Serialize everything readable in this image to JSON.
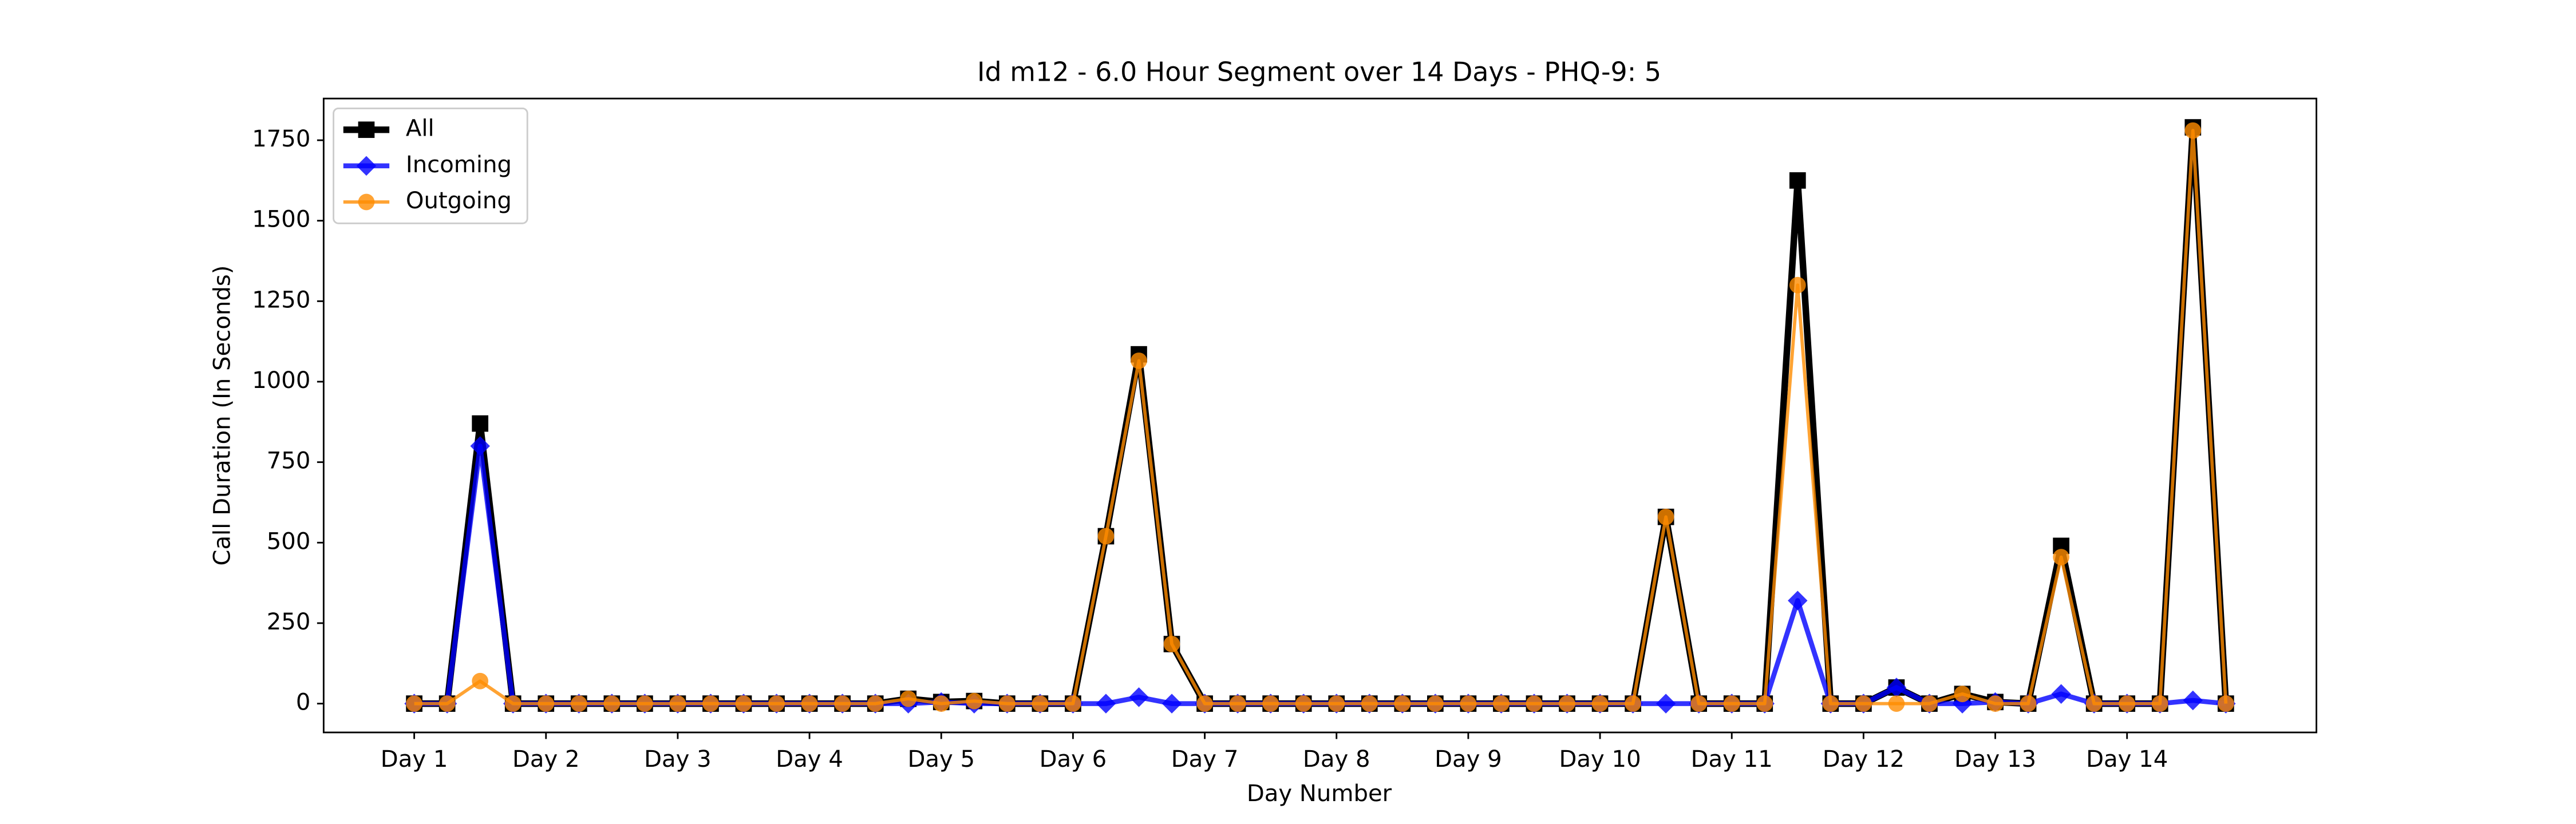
{
  "chart_data": {
    "type": "line",
    "title": "Id m12 - 6.0 Hour Segment over 14 Days - PHQ-9: 5",
    "xlabel": "Day Number",
    "ylabel": "Call Duration (In Seconds)",
    "x": [
      0,
      1,
      2,
      3,
      4,
      5,
      6,
      7,
      8,
      9,
      10,
      11,
      12,
      13,
      14,
      15,
      16,
      17,
      18,
      19,
      20,
      21,
      22,
      23,
      24,
      25,
      26,
      27,
      28,
      29,
      30,
      31,
      32,
      33,
      34,
      35,
      36,
      37,
      38,
      39,
      40,
      41,
      42,
      43,
      44,
      45,
      46,
      47,
      48,
      49,
      50,
      51,
      52,
      53,
      54,
      55
    ],
    "series": [
      {
        "name": "All",
        "color": "#000000",
        "marker": "square",
        "width": 4,
        "values": [
          0,
          0,
          870,
          0,
          0,
          0,
          0,
          0,
          0,
          0,
          0,
          0,
          0,
          0,
          0,
          15,
          5,
          8,
          0,
          0,
          0,
          520,
          1085,
          185,
          0,
          0,
          0,
          0,
          0,
          0,
          0,
          0,
          0,
          0,
          0,
          0,
          0,
          0,
          580,
          0,
          0,
          0,
          1625,
          0,
          0,
          50,
          0,
          30,
          5,
          0,
          490,
          0,
          0,
          0,
          1790,
          0
        ]
      },
      {
        "name": "Incoming",
        "color": "#0000ff",
        "marker": "diamond",
        "width": 3,
        "values": [
          0,
          0,
          800,
          0,
          0,
          0,
          0,
          0,
          0,
          0,
          0,
          0,
          0,
          0,
          0,
          0,
          5,
          0,
          0,
          0,
          0,
          0,
          20,
          0,
          0,
          0,
          0,
          0,
          0,
          0,
          0,
          0,
          0,
          0,
          0,
          0,
          0,
          0,
          0,
          0,
          0,
          0,
          320,
          0,
          0,
          50,
          0,
          0,
          5,
          0,
          30,
          0,
          0,
          0,
          10,
          0
        ]
      },
      {
        "name": "Outgoing",
        "color": "#ff8c00",
        "marker": "circle",
        "width": 2,
        "values": [
          0,
          0,
          70,
          0,
          0,
          0,
          0,
          0,
          0,
          0,
          0,
          0,
          0,
          0,
          0,
          15,
          0,
          8,
          0,
          0,
          0,
          520,
          1065,
          185,
          0,
          0,
          0,
          0,
          0,
          0,
          0,
          0,
          0,
          0,
          0,
          0,
          0,
          0,
          580,
          0,
          0,
          0,
          1300,
          0,
          0,
          0,
          0,
          30,
          0,
          0,
          455,
          0,
          0,
          0,
          1780,
          0
        ]
      }
    ],
    "xlim": [
      -2.75,
      57.75
    ],
    "ylim": [
      -89.5,
      1879.5
    ],
    "xticks": [
      {
        "value": 0,
        "label": "Day 1"
      },
      {
        "value": 4,
        "label": "Day 2"
      },
      {
        "value": 8,
        "label": "Day 3"
      },
      {
        "value": 12,
        "label": "Day 4"
      },
      {
        "value": 16,
        "label": "Day 5"
      },
      {
        "value": 20,
        "label": "Day 6"
      },
      {
        "value": 24,
        "label": "Day 7"
      },
      {
        "value": 28,
        "label": "Day 8"
      },
      {
        "value": 32,
        "label": "Day 9"
      },
      {
        "value": 36,
        "label": "Day 10"
      },
      {
        "value": 40,
        "label": "Day 11"
      },
      {
        "value": 44,
        "label": "Day 12"
      },
      {
        "value": 48,
        "label": "Day 13"
      },
      {
        "value": 52,
        "label": "Day 14"
      }
    ],
    "yticks": [
      0,
      250,
      500,
      750,
      1000,
      1250,
      1500,
      1750
    ],
    "legend": "upper left"
  }
}
